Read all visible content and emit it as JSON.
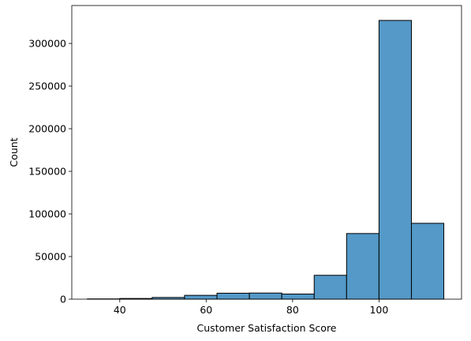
{
  "chart_data": {
    "type": "bar",
    "xlabel": "Customer Satisfaction Score",
    "ylabel": "Count",
    "xlim": [
      28.9,
      119.1
    ],
    "ylim": [
      0,
      344500
    ],
    "grid": false,
    "bar_color": "#5499c7",
    "edge_color": "#000000",
    "bins": [
      {
        "start": 32.5,
        "end": 40.0,
        "count": 300
      },
      {
        "start": 40.0,
        "end": 47.5,
        "count": 800
      },
      {
        "start": 47.5,
        "end": 55.0,
        "count": 2000
      },
      {
        "start": 55.0,
        "end": 62.5,
        "count": 4500
      },
      {
        "start": 62.5,
        "end": 70.0,
        "count": 7000
      },
      {
        "start": 70.0,
        "end": 77.5,
        "count": 7200
      },
      {
        "start": 77.5,
        "end": 85.0,
        "count": 6000
      },
      {
        "start": 85.0,
        "end": 92.5,
        "count": 28000
      },
      {
        "start": 92.5,
        "end": 100.0,
        "count": 77000
      },
      {
        "start": 100.0,
        "end": 107.5,
        "count": 327000
      },
      {
        "start": 107.5,
        "end": 115.0,
        "count": 89000
      }
    ],
    "x_ticks": [
      {
        "value": 40,
        "label": "40"
      },
      {
        "value": 60,
        "label": "60"
      },
      {
        "value": 80,
        "label": "80"
      },
      {
        "value": 100,
        "label": "100"
      }
    ],
    "y_ticks": [
      {
        "value": 0,
        "label": "0"
      },
      {
        "value": 50000,
        "label": "50000"
      },
      {
        "value": 100000,
        "label": "100000"
      },
      {
        "value": 150000,
        "label": "150000"
      },
      {
        "value": 200000,
        "label": "200000"
      },
      {
        "value": 250000,
        "label": "250000"
      },
      {
        "value": 300000,
        "label": "300000"
      }
    ]
  }
}
